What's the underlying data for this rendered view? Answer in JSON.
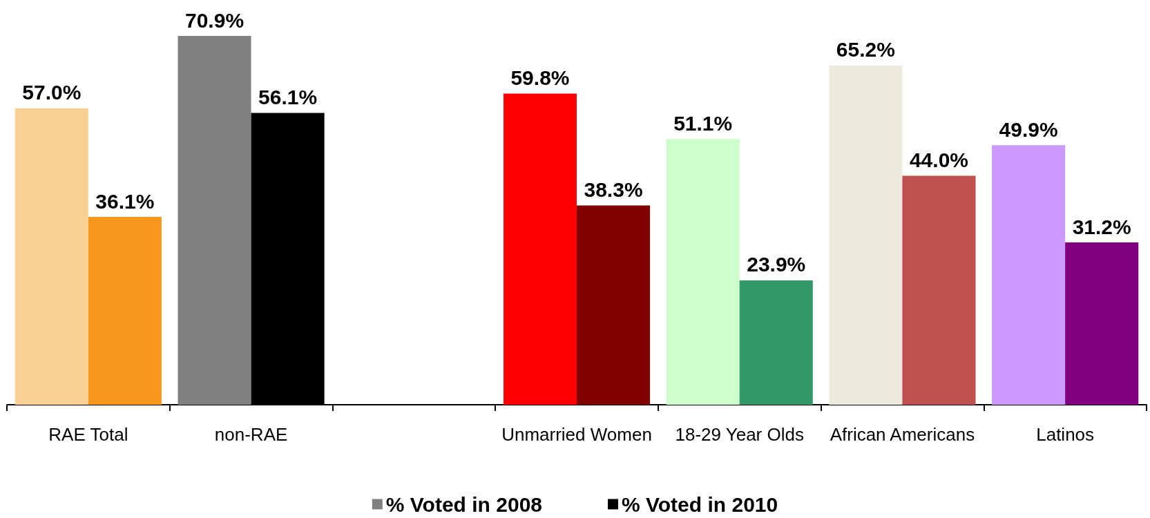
{
  "chart_data": {
    "type": "bar",
    "categories": [
      "RAE Total",
      "non-RAE",
      null,
      "Unmarried Women",
      "18-29 Year Olds",
      "African Americans",
      "Latinos"
    ],
    "series": [
      {
        "name": "% Voted in 2008",
        "color": "#808080",
        "colors": [
          "#f9cf93",
          "#808080",
          null,
          "#ff0000",
          "#ccffcc",
          "#ece9dd",
          "#cc99ff"
        ],
        "values": [
          57.0,
          70.9,
          null,
          59.8,
          51.1,
          65.2,
          49.9
        ],
        "value_labels": [
          "57.0%",
          "70.9%",
          null,
          "59.8%",
          "51.1%",
          "65.2%",
          "49.9%"
        ]
      },
      {
        "name": "% Voted in 2010",
        "color": "#000000",
        "colors": [
          "#f7971b",
          "#000000",
          null,
          "#800000",
          "#339966",
          "#c0504d",
          "#800080"
        ],
        "values": [
          36.1,
          56.1,
          null,
          38.3,
          23.9,
          44.0,
          31.2
        ],
        "value_labels": [
          "36.1%",
          "56.1%",
          null,
          "38.3%",
          "23.9%",
          "44.0%",
          "31.2%"
        ]
      }
    ],
    "legend": "bottom",
    "grid": false
  }
}
